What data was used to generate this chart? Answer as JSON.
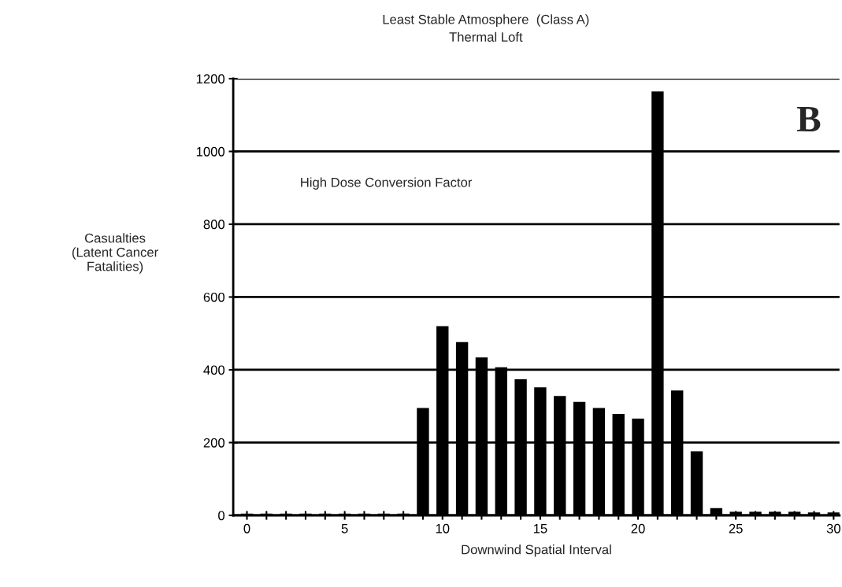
{
  "chart_data": {
    "type": "bar",
    "title": "Least Stable Atmosphere  (Class A)",
    "subtitle": "Thermal Loft",
    "xlabel": "Downwind Spatial Interval",
    "ylabel": "Casualties\n(Latent Cancer\nFatalities)",
    "annotations": [
      "B",
      "High Dose Conversion Factor"
    ],
    "x": [
      0,
      1,
      2,
      3,
      4,
      5,
      6,
      7,
      8,
      9,
      10,
      11,
      12,
      13,
      14,
      15,
      16,
      17,
      18,
      19,
      20,
      21,
      22,
      23,
      24,
      25,
      26,
      27,
      28,
      29,
      30
    ],
    "values": [
      5,
      5,
      5,
      5,
      5,
      5,
      5,
      5,
      5,
      295,
      520,
      476,
      434,
      407,
      374,
      352,
      328,
      312,
      295,
      279,
      266,
      1165,
      343,
      176,
      20,
      10,
      10,
      10,
      10,
      8,
      8
    ],
    "color": "#000000",
    "xlim": [
      -0.7,
      30.3
    ],
    "xticks": [
      0,
      {
        "value": 1,
        "label": null
      },
      {
        "value": 2,
        "label": null
      },
      {
        "value": 3,
        "label": null
      },
      {
        "value": 4,
        "label": null
      },
      5,
      {
        "value": 6,
        "label": null
      },
      {
        "value": 7,
        "label": null
      },
      {
        "value": 8,
        "label": null
      },
      {
        "value": 9,
        "label": null
      },
      10,
      {
        "value": 11,
        "label": null
      },
      {
        "value": 12,
        "label": null
      },
      {
        "value": 13,
        "label": null
      },
      {
        "value": 14,
        "label": null
      },
      15,
      {
        "value": 16,
        "label": null
      },
      {
        "value": 17,
        "label": null
      },
      {
        "value": 18,
        "label": null
      },
      {
        "value": 19,
        "label": null
      },
      20,
      {
        "value": 21,
        "label": null
      },
      {
        "value": 22,
        "label": null
      },
      {
        "value": 23,
        "label": null
      },
      {
        "value": 24,
        "label": null
      },
      25,
      {
        "value": 26,
        "label": null
      },
      {
        "value": 27,
        "label": null
      },
      {
        "value": 28,
        "label": null
      },
      {
        "value": 29,
        "label": null
      },
      30
    ],
    "ylim": [
      0,
      1200
    ],
    "yticks": [
      0,
      200,
      400,
      600,
      800,
      1000,
      1200
    ],
    "grid": "y"
  }
}
